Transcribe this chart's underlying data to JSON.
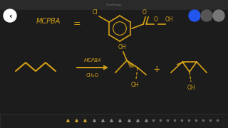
{
  "background_color": "#1c1c1c",
  "golden_color": "#d4a017",
  "title_bar_color": "#2a2a2a",
  "toolbar_color": "#252525",
  "mcpba_text": "MCPBA",
  "eq_text": "=",
  "reagent_text": "MCPBA",
  "solvent_text": "CH₂O",
  "plus_text": "+",
  "cl_text": "Cl",
  "oh_text": "OH",
  "o_text": "O"
}
